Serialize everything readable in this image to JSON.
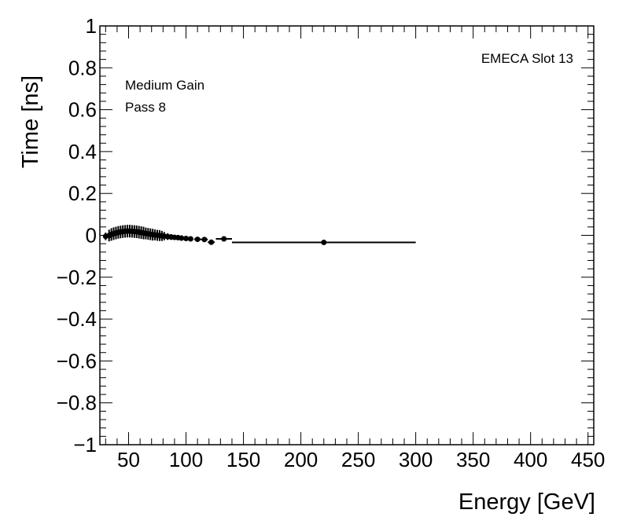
{
  "chart_data": {
    "type": "scatter",
    "xlabel": "Energy [GeV]",
    "ylabel": "Time [ns]",
    "xlim": [
      25,
      455
    ],
    "ylim": [
      -1,
      1
    ],
    "x_ticks": [
      50,
      100,
      150,
      200,
      250,
      300,
      350,
      400,
      450
    ],
    "x_tick_labels": [
      "50",
      "100",
      "150",
      "200",
      "250",
      "300",
      "350",
      "400",
      "450"
    ],
    "y_ticks": [
      -1,
      -0.8,
      -0.6,
      -0.4,
      -0.2,
      0,
      0.2,
      0.4,
      0.6,
      0.8,
      1
    ],
    "y_tick_labels": [
      "−1",
      "−0.8",
      "−0.6",
      "−0.4",
      "−0.2",
      "0",
      "0.2",
      "0.4",
      "0.6",
      "0.8",
      "1"
    ],
    "annotations": {
      "slot": "EMECA Slot 13",
      "gain": "Medium Gain",
      "pass": "Pass 8"
    },
    "series": [
      {
        "name": "Medium Gain Pass 8",
        "points": [
          {
            "x": 30,
            "y": -0.005,
            "xerr": 1.5,
            "yerr": 0.018
          },
          {
            "x": 33,
            "y": -0.001,
            "xerr": 0.5,
            "yerr": 0.028
          },
          {
            "x": 35,
            "y": 0.004,
            "xerr": 0.5,
            "yerr": 0.03
          },
          {
            "x": 37,
            "y": 0.008,
            "xerr": 0.5,
            "yerr": 0.03
          },
          {
            "x": 39,
            "y": 0.011,
            "xerr": 0.5,
            "yerr": 0.03
          },
          {
            "x": 41,
            "y": 0.014,
            "xerr": 0.5,
            "yerr": 0.03
          },
          {
            "x": 43,
            "y": 0.016,
            "xerr": 0.5,
            "yerr": 0.03
          },
          {
            "x": 45,
            "y": 0.018,
            "xerr": 0.5,
            "yerr": 0.03
          },
          {
            "x": 47,
            "y": 0.019,
            "xerr": 0.5,
            "yerr": 0.03
          },
          {
            "x": 49,
            "y": 0.02,
            "xerr": 0.5,
            "yerr": 0.03
          },
          {
            "x": 51,
            "y": 0.02,
            "xerr": 0.5,
            "yerr": 0.03
          },
          {
            "x": 53,
            "y": 0.019,
            "xerr": 0.5,
            "yerr": 0.03
          },
          {
            "x": 55,
            "y": 0.018,
            "xerr": 0.5,
            "yerr": 0.03
          },
          {
            "x": 57,
            "y": 0.017,
            "xerr": 0.5,
            "yerr": 0.03
          },
          {
            "x": 59,
            "y": 0.015,
            "xerr": 0.5,
            "yerr": 0.03
          },
          {
            "x": 61,
            "y": 0.013,
            "xerr": 0.5,
            "yerr": 0.03
          },
          {
            "x": 63,
            "y": 0.011,
            "xerr": 0.5,
            "yerr": 0.03
          },
          {
            "x": 65,
            "y": 0.009,
            "xerr": 0.5,
            "yerr": 0.028
          },
          {
            "x": 67,
            "y": 0.007,
            "xerr": 0.5,
            "yerr": 0.028
          },
          {
            "x": 69,
            "y": 0.005,
            "xerr": 0.5,
            "yerr": 0.028
          },
          {
            "x": 71,
            "y": 0.003,
            "xerr": 0.5,
            "yerr": 0.028
          },
          {
            "x": 73,
            "y": 0.002,
            "xerr": 0.5,
            "yerr": 0.026
          },
          {
            "x": 75,
            "y": 0.0,
            "xerr": 0.5,
            "yerr": 0.026
          },
          {
            "x": 77,
            "y": -0.001,
            "xerr": 0.5,
            "yerr": 0.026
          },
          {
            "x": 79,
            "y": -0.003,
            "xerr": 0.5,
            "yerr": 0.024
          },
          {
            "x": 81,
            "y": -0.004,
            "xerr": 0.5,
            "yerr": 0.02
          },
          {
            "x": 84,
            "y": -0.006,
            "xerr": 1.0,
            "yerr": 0.016
          },
          {
            "x": 87,
            "y": -0.008,
            "xerr": 1.0,
            "yerr": 0.014
          },
          {
            "x": 90,
            "y": -0.01,
            "xerr": 1.0,
            "yerr": 0.012
          },
          {
            "x": 93,
            "y": -0.011,
            "xerr": 1.0,
            "yerr": 0.012
          },
          {
            "x": 96,
            "y": -0.013,
            "xerr": 1.0,
            "yerr": 0.012
          },
          {
            "x": 100,
            "y": -0.015,
            "xerr": 1.5,
            "yerr": 0.01
          },
          {
            "x": 104,
            "y": -0.017,
            "xerr": 1.5,
            "yerr": 0.01
          },
          {
            "x": 110,
            "y": -0.019,
            "xerr": 3,
            "yerr": 0.008
          },
          {
            "x": 116,
            "y": -0.02,
            "xerr": 3,
            "yerr": 0.008
          },
          {
            "x": 122,
            "y": -0.033,
            "xerr": 3,
            "yerr": 0.006
          },
          {
            "x": 133,
            "y": -0.017,
            "xerr": 7,
            "yerr": 0.004
          },
          {
            "x": 220,
            "y": -0.034,
            "xerr": 80,
            "yerr": 0.003
          }
        ]
      }
    ]
  }
}
